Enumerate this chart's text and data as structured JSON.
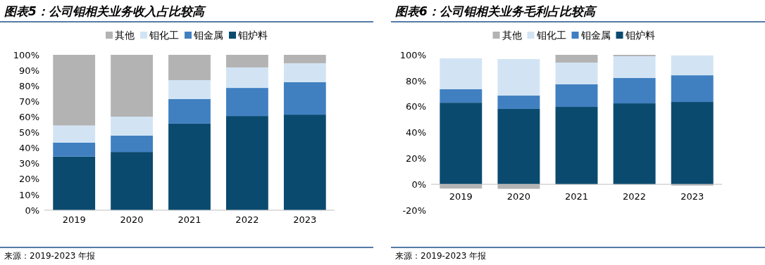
{
  "chart_data": [
    {
      "type": "bar",
      "title": "图表5：公司钼相关业务收入占比较高",
      "categories": [
        "2019",
        "2020",
        "2021",
        "2022",
        "2023"
      ],
      "stacked": true,
      "legend": "top",
      "grid": false,
      "ylim": [
        0,
        100
      ],
      "yticks": [
        {
          "value": 0,
          "label": "0%"
        },
        {
          "value": 10,
          "label": "10%"
        },
        {
          "value": 20,
          "label": "20%"
        },
        {
          "value": 30,
          "label": "30%"
        },
        {
          "value": 40,
          "label": "40%"
        },
        {
          "value": 50,
          "label": "50%"
        },
        {
          "value": 60,
          "label": "60%"
        },
        {
          "value": 70,
          "label": "70%"
        },
        {
          "value": 80,
          "label": "80%"
        },
        {
          "value": 90,
          "label": "90%"
        },
        {
          "value": 100,
          "label": "100%"
        }
      ],
      "series": [
        {
          "name": "钼炉料",
          "color": "#0b4a6f",
          "values": [
            34.5,
            37.5,
            55.7,
            60.6,
            61.5
          ]
        },
        {
          "name": "钼金属",
          "color": "#4080c1",
          "values": [
            9,
            10.5,
            15.8,
            18.1,
            20.9
          ]
        },
        {
          "name": "钼化工",
          "color": "#d2e4f4",
          "values": [
            11,
            12.2,
            12.2,
            13.2,
            12.2
          ]
        },
        {
          "name": "其他",
          "color": "#b3b3b3",
          "values": [
            45.5,
            39.8,
            16.3,
            8.1,
            5.4
          ]
        }
      ],
      "annotations": [
        "来源：2019-2023 年报"
      ]
    },
    {
      "type": "bar",
      "title": "图表6：公司钼相关业务毛利占比较高",
      "categories": [
        "2019",
        "2020",
        "2021",
        "2022",
        "2023"
      ],
      "stacked": true,
      "legend": "top",
      "grid": false,
      "ylim": [
        -20,
        100
      ],
      "yticks": [
        {
          "value": -20,
          "label": "-20%"
        },
        {
          "value": 0,
          "label": "0%"
        },
        {
          "value": 20,
          "label": "20%"
        },
        {
          "value": 40,
          "label": "40%"
        },
        {
          "value": 60,
          "label": "60%"
        },
        {
          "value": 80,
          "label": "80%"
        },
        {
          "value": 100,
          "label": "100%"
        }
      ],
      "series": [
        {
          "name": "钼炉料",
          "color": "#0b4a6f",
          "values": [
            63,
            58.2,
            59.8,
            62.5,
            63.6
          ]
        },
        {
          "name": "钼金属",
          "color": "#4080c1",
          "values": [
            10.4,
            10.3,
            17.4,
            19.6,
            20.6
          ]
        },
        {
          "name": "钼化工",
          "color": "#d2e4f4",
          "values": [
            23.9,
            28.2,
            16.8,
            16.8,
            15.3
          ]
        },
        {
          "name": "其他",
          "color": "#b3b3b3",
          "values": [
            -3.3,
            -3.5,
            6,
            1.1,
            -1
          ]
        }
      ],
      "annotations": [
        "来源：2019-2023 年报"
      ]
    }
  ]
}
